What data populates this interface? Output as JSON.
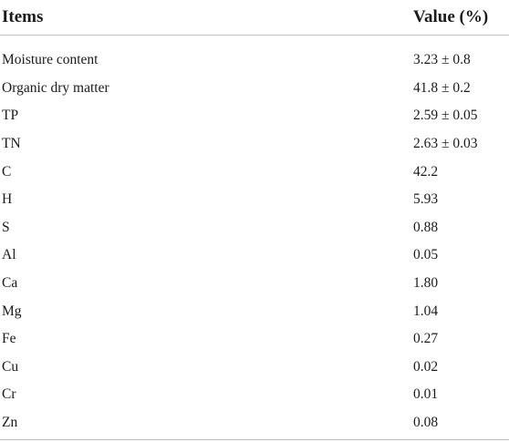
{
  "table": {
    "headers": [
      "Items",
      "Value (%)"
    ],
    "rows": [
      [
        "Moisture content",
        "3.23 ± 0.8"
      ],
      [
        "Organic dry matter",
        "41.8 ± 0.2"
      ],
      [
        "TP",
        "2.59 ± 0.05"
      ],
      [
        "TN",
        "2.63 ± 0.03"
      ],
      [
        "C",
        "42.2"
      ],
      [
        "H",
        "5.93"
      ],
      [
        "S",
        "0.88"
      ],
      [
        "Al",
        "0.05"
      ],
      [
        "Ca",
        "1.80"
      ],
      [
        "Mg",
        "1.04"
      ],
      [
        "Fe",
        "0.27"
      ],
      [
        "Cu",
        "0.02"
      ],
      [
        "Cr",
        "0.01"
      ],
      [
        "Zn",
        "0.08"
      ]
    ]
  }
}
